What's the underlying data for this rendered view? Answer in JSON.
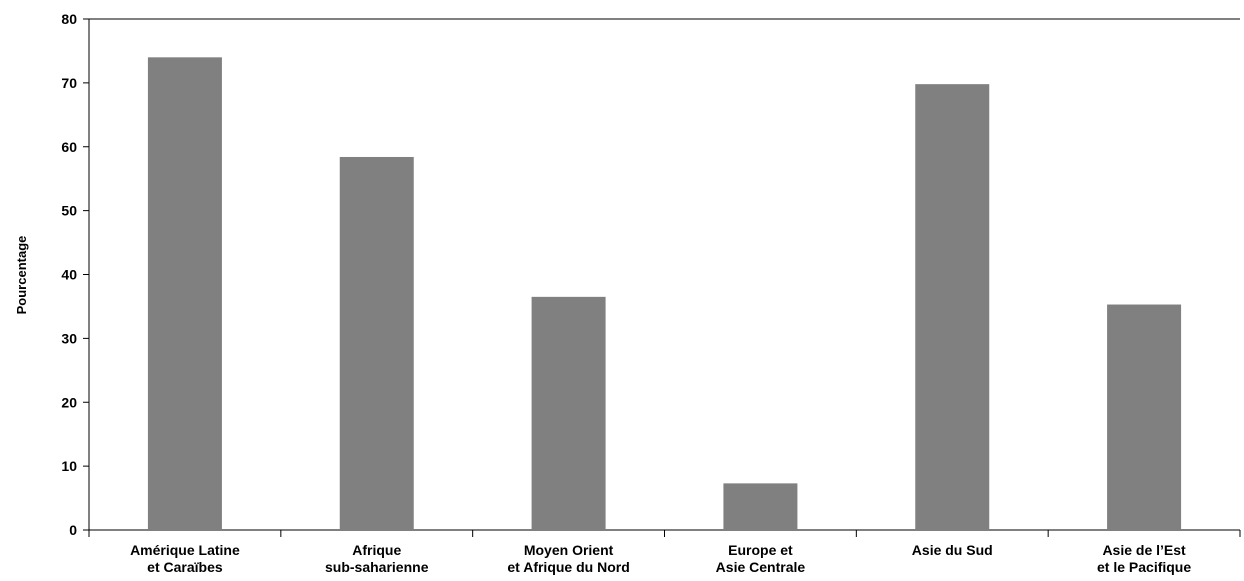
{
  "chart_data": {
    "type": "bar",
    "title": "",
    "xlabel": "",
    "ylabel": "Pourcentage",
    "ylim": [
      0,
      80
    ],
    "yticks": [
      0,
      10,
      20,
      30,
      40,
      50,
      60,
      70,
      80
    ],
    "grid": false,
    "bar_color": "#808080",
    "categories": [
      [
        "Amérique Latine",
        "et Caraïbes"
      ],
      [
        "Afrique",
        "sub-saharienne"
      ],
      [
        "Moyen Orient",
        "et Afrique du Nord"
      ],
      [
        "Europe et",
        "Asie Centrale"
      ],
      [
        "Asie du Sud"
      ],
      [
        "Asie de l’Est",
        "et le Pacifique"
      ]
    ],
    "values": [
      74,
      58.4,
      36.5,
      7.3,
      69.8,
      35.3
    ]
  }
}
